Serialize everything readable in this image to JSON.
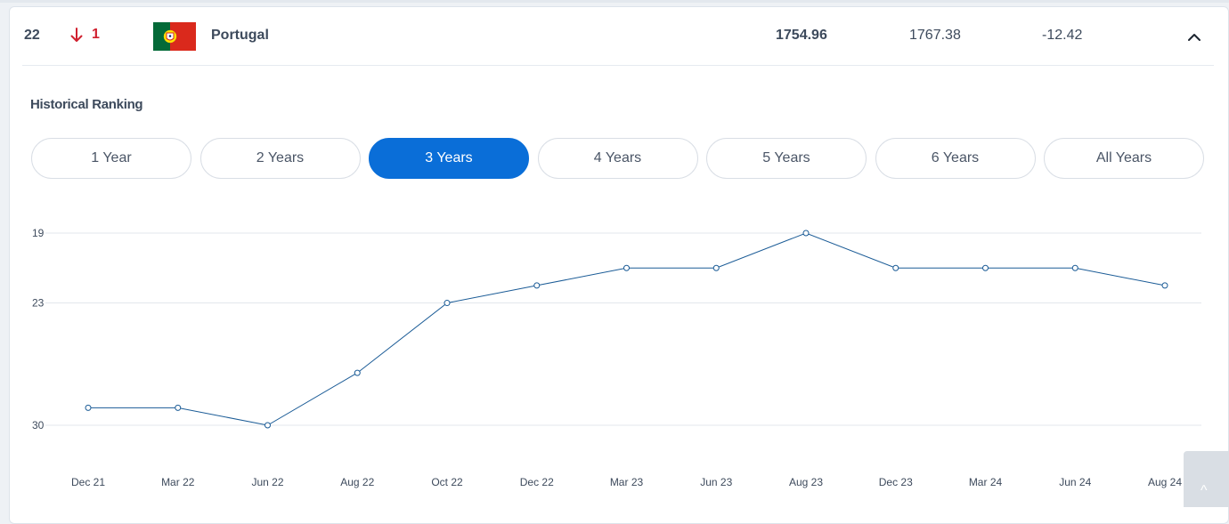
{
  "row": {
    "rank": "22",
    "change": "1",
    "country": "Portugal",
    "points": "1754.96",
    "previous_points": "1767.38",
    "points_change": "-12.42"
  },
  "historical": {
    "title": "Historical Ranking",
    "tabs": [
      {
        "label": "1 Year",
        "active": false
      },
      {
        "label": "2 Years",
        "active": false
      },
      {
        "label": "3 Years",
        "active": true
      },
      {
        "label": "4 Years",
        "active": false
      },
      {
        "label": "5 Years",
        "active": false
      },
      {
        "label": "6 Years",
        "active": false
      },
      {
        "label": "All Years",
        "active": false
      }
    ]
  },
  "chart_data": {
    "type": "line",
    "categories": [
      "Dec 21",
      "Mar 22",
      "Jun 22",
      "Aug 22",
      "Oct 22",
      "Dec 22",
      "Mar 23",
      "Jun 23",
      "Aug 23",
      "Dec 23",
      "Mar 24",
      "Jun 24",
      "Aug 24"
    ],
    "series": [
      {
        "values": [
          29,
          29,
          30,
          27,
          23,
          22,
          21,
          21,
          19,
          21,
          21,
          21,
          22
        ]
      }
    ],
    "y_ticks": [
      19,
      23,
      30
    ],
    "y_range": [
      19,
      30
    ],
    "y_inverted": true,
    "grid": true,
    "line_color": "#1a5b96"
  },
  "scroll_top": {
    "glyph": "^"
  }
}
